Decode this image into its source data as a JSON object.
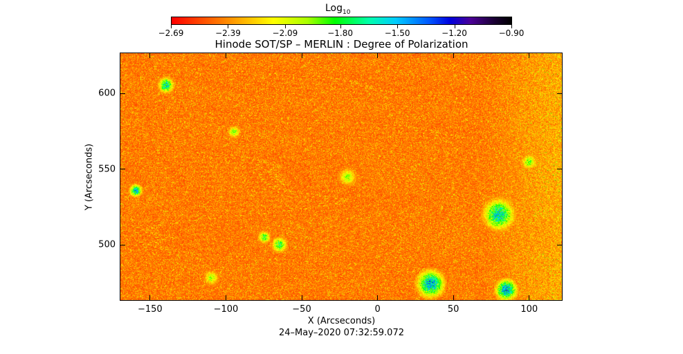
{
  "chart_data": {
    "type": "heatmap",
    "title": "Hinode SOT/SP – MERLIN : Degree of Polarization",
    "xlabel": "X (Arcseconds)",
    "ylabel": "Y (Arcseconds)",
    "xlim": [
      -170,
      122
    ],
    "ylim": [
      463,
      627
    ],
    "x_ticks": [
      "−150",
      "−100",
      "−50",
      "0",
      "50",
      "100"
    ],
    "x_tick_values": [
      -150,
      -100,
      -50,
      0,
      50,
      100
    ],
    "y_ticks": [
      "500",
      "550",
      "600"
    ],
    "y_tick_values": [
      500,
      550,
      600
    ],
    "colorbar": {
      "label": "Log",
      "label_subscript": "10",
      "ticks": [
        "−2.69",
        "−2.39",
        "−2.09",
        "−1.80",
        "−1.50",
        "−1.20",
        "−0.90"
      ],
      "tick_values": [
        -2.69,
        -2.39,
        -2.09,
        -1.8,
        -1.5,
        -1.2,
        -0.9
      ],
      "colormap": "rainbow (red → yellow → green → cyan → blue → violet → black)"
    },
    "timestamp": "24–May–2020 07:32:59.072",
    "notes": "Mostly red/orange background (low polarization) with yellow/green speckle; blue/cyan patches (high polarization) near (35,475), (85,470), (80,520), (-160,535), (-140,605), (-65,500); brighter yellowish texture toward the right side (x ≈ 75–120)."
  }
}
